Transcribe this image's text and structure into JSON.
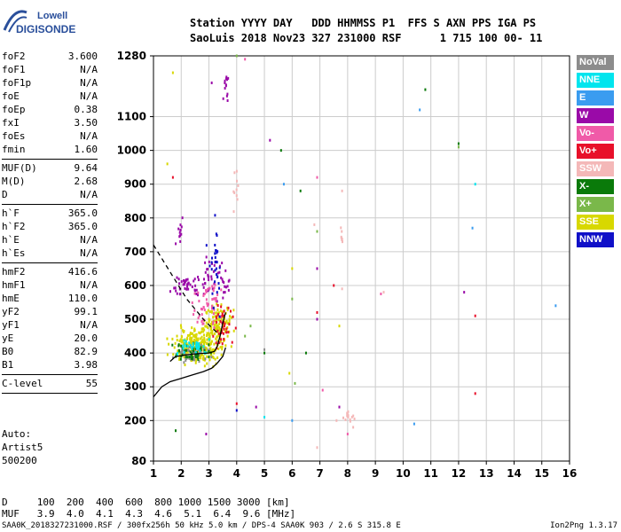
{
  "logo": {
    "line1": "Lowell",
    "line2": "DIGISONDE"
  },
  "header": {
    "line1": "Station YYYY DAY   DDD HHMMSS P1  FFS S AXN PPS IGA PS",
    "line2": "SaoLuis 2018 Nov23 327 231000 RSF      1 715 100 00- 11"
  },
  "params": {
    "g1": [
      [
        "foF2",
        "3.600"
      ],
      [
        "foF1",
        "N/A"
      ],
      [
        "foF1p",
        "N/A"
      ],
      [
        "foE",
        "N/A"
      ],
      [
        "foEp",
        "0.38"
      ],
      [
        "fxI",
        "3.50"
      ],
      [
        "foEs",
        "N/A"
      ],
      [
        "fmin",
        "1.60"
      ]
    ],
    "g2": [
      [
        "MUF(D)",
        "9.64"
      ],
      [
        "M(D)",
        "2.68"
      ],
      [
        "D",
        "N/A"
      ]
    ],
    "g3": [
      [
        "h`F",
        "365.0"
      ],
      [
        "h`F2",
        "365.0"
      ],
      [
        "h`E",
        "N/A"
      ],
      [
        "h`Es",
        "N/A"
      ]
    ],
    "g4": [
      [
        "hmF2",
        "416.6"
      ],
      [
        "hmF1",
        "N/A"
      ],
      [
        "hmE",
        "110.0"
      ],
      [
        "yF2",
        "99.1"
      ],
      [
        "yF1",
        "N/A"
      ],
      [
        "yE",
        "20.0"
      ],
      [
        "B0",
        "82.9"
      ],
      [
        "B1",
        "3.98"
      ]
    ],
    "g5": [
      [
        "C-level",
        "55"
      ]
    ]
  },
  "auto": {
    "l1": "Auto:",
    "l2": "Artist5",
    "l3": "500200"
  },
  "legend": [
    {
      "label": "NoVal",
      "color": "#8c8c8c"
    },
    {
      "label": "NNE",
      "color": "#00e5ee"
    },
    {
      "label": "E",
      "color": "#3a9cf0"
    },
    {
      "label": "W",
      "color": "#9a0aa8"
    },
    {
      "label": "Vo-",
      "color": "#f05aa8"
    },
    {
      "label": "Vo+",
      "color": "#e8102a"
    },
    {
      "label": "SSW",
      "color": "#f4b8b8"
    },
    {
      "label": "X-",
      "color": "#0a7a0a"
    },
    {
      "label": "X+",
      "color": "#7ab84a"
    },
    {
      "label": "SSE",
      "color": "#d8d800"
    },
    {
      "label": "NNW",
      "color": "#1010c8"
    }
  ],
  "bottom": {
    "d_row": "D     100  200  400  600  800 1000 1500 3000 [km]",
    "muf_row": "MUF   3.9  4.0  4.1  4.3  4.6  5.1  6.4  9.6 [MHz]"
  },
  "footer": {
    "left": "SAA0K_2018327231000.RSF / 300fx256h 50 kHz 5.0 km / DPS-4 SAA0K 903 / 2.6 S 315.8 E",
    "right": "Ion2Png 1.3.17"
  },
  "chart_data": {
    "type": "scatter",
    "xlim": [
      1,
      16
    ],
    "ylim": [
      80,
      1280
    ],
    "xticks": [
      1,
      2,
      3,
      4,
      5,
      6,
      7,
      8,
      9,
      10,
      11,
      12,
      13,
      14,
      15,
      16
    ],
    "yticks": [
      80,
      200,
      300,
      400,
      500,
      600,
      700,
      800,
      900,
      1000,
      1100,
      1280
    ],
    "grid": true,
    "trace_profile": {
      "x": [
        1.0,
        1.3,
        1.6,
        2.0,
        2.4,
        2.8,
        3.1,
        3.3,
        3.5,
        3.6
      ],
      "y": [
        270,
        300,
        315,
        325,
        335,
        345,
        355,
        370,
        390,
        416
      ]
    },
    "trace_vh": {
      "x": [
        1.6,
        1.8,
        2.0,
        2.2,
        2.6,
        3.0,
        3.2,
        3.3,
        3.4,
        3.5,
        3.6
      ],
      "y": [
        375,
        390,
        392,
        395,
        398,
        400,
        405,
        420,
        450,
        490,
        520
      ]
    },
    "trace_dashed": {
      "x": [
        1.0,
        1.3,
        1.6,
        1.9,
        2.2,
        2.5,
        2.8,
        3.1,
        3.3
      ],
      "y": [
        720,
        680,
        640,
        600,
        560,
        530,
        500,
        475,
        460
      ]
    },
    "clusters": [
      {
        "cx": 2.6,
        "cy": 420,
        "sx": 0.7,
        "sy": 40,
        "n": 260,
        "color": "#d8d800"
      },
      {
        "cx": 3.3,
        "cy": 480,
        "sx": 0.4,
        "sy": 50,
        "n": 120,
        "color": "#d8d800"
      },
      {
        "cx": 2.4,
        "cy": 400,
        "sx": 0.5,
        "sy": 20,
        "n": 60,
        "color": "#8c8c8c"
      },
      {
        "cx": 2.2,
        "cy": 600,
        "sx": 0.5,
        "sy": 25,
        "n": 40,
        "color": "#9a0aa8"
      },
      {
        "cx": 3.2,
        "cy": 620,
        "sx": 0.4,
        "sy": 60,
        "n": 50,
        "color": "#9a0aa8"
      },
      {
        "cx": 3.0,
        "cy": 540,
        "sx": 0.5,
        "sy": 70,
        "n": 50,
        "color": "#f05aa8"
      },
      {
        "cx": 2.4,
        "cy": 400,
        "sx": 0.6,
        "sy": 25,
        "n": 45,
        "color": "#0a7a0a"
      },
      {
        "cx": 3.5,
        "cy": 480,
        "sx": 0.3,
        "sy": 60,
        "n": 40,
        "color": "#e8102a"
      },
      {
        "cx": 2.5,
        "cy": 420,
        "sx": 0.6,
        "sy": 20,
        "n": 35,
        "color": "#00e5ee"
      },
      {
        "cx": 3.6,
        "cy": 1200,
        "sx": 0.08,
        "sy": 40,
        "n": 14,
        "color": "#9a0aa8"
      },
      {
        "cx": 3.2,
        "cy": 650,
        "sx": 0.25,
        "sy": 90,
        "n": 30,
        "color": "#1010c8"
      },
      {
        "cx": 4.0,
        "cy": 880,
        "sx": 0.1,
        "sy": 40,
        "n": 10,
        "color": "#f4b8b8"
      },
      {
        "cx": 7.8,
        "cy": 750,
        "sx": 0.05,
        "sy": 30,
        "n": 8,
        "color": "#f4b8b8"
      },
      {
        "cx": 8.0,
        "cy": 210,
        "sx": 0.2,
        "sy": 20,
        "n": 14,
        "color": "#f4b8b8"
      },
      {
        "cx": 2.0,
        "cy": 760,
        "sx": 0.15,
        "sy": 40,
        "n": 12,
        "color": "#9a0aa8"
      }
    ],
    "scatter_points": [
      [
        1.7,
        1230,
        "#d8d800"
      ],
      [
        1.5,
        960,
        "#d8d800"
      ],
      [
        1.7,
        920,
        "#e8102a"
      ],
      [
        4.0,
        1280,
        "#7ab84a"
      ],
      [
        4.3,
        1270,
        "#f05aa8"
      ],
      [
        5.2,
        1030,
        "#9a0aa8"
      ],
      [
        5.6,
        1000,
        "#0a7a0a"
      ],
      [
        5.7,
        900,
        "#3a9cf0"
      ],
      [
        6.3,
        880,
        "#0a7a0a"
      ],
      [
        6.9,
        920,
        "#f05aa8"
      ],
      [
        7.8,
        880,
        "#f4b8b8"
      ],
      [
        10.6,
        1120,
        "#3a9cf0"
      ],
      [
        10.8,
        1180,
        "#0a7a0a"
      ],
      [
        12.0,
        1020,
        "#0a7a0a"
      ],
      [
        12.0,
        1010,
        "#7ab84a"
      ],
      [
        12.6,
        900,
        "#00e5ee"
      ],
      [
        12.5,
        770,
        "#3a9cf0"
      ],
      [
        12.2,
        580,
        "#9a0aa8"
      ],
      [
        12.6,
        510,
        "#e8102a"
      ],
      [
        15.5,
        540,
        "#3a9cf0"
      ],
      [
        6.8,
        780,
        "#f4b8b8"
      ],
      [
        6.9,
        760,
        "#7ab84a"
      ],
      [
        6.9,
        650,
        "#9a0aa8"
      ],
      [
        7.5,
        600,
        "#e8102a"
      ],
      [
        7.8,
        590,
        "#f4b8b8"
      ],
      [
        9.3,
        580,
        "#f4b8b8"
      ],
      [
        9.2,
        575,
        "#f05aa8"
      ],
      [
        7.7,
        480,
        "#d8d800"
      ],
      [
        6.0,
        650,
        "#d8d800"
      ],
      [
        6.0,
        560,
        "#7ab84a"
      ],
      [
        6.9,
        500,
        "#9a0aa8"
      ],
      [
        6.9,
        520,
        "#e8102a"
      ],
      [
        6.5,
        400,
        "#0a7a0a"
      ],
      [
        5.0,
        400,
        "#0a7a0a"
      ],
      [
        5.0,
        410,
        "#8c8c8c"
      ],
      [
        4.5,
        480,
        "#7ab84a"
      ],
      [
        4.3,
        450,
        "#7ab84a"
      ],
      [
        5.9,
        340,
        "#d8d800"
      ],
      [
        6.1,
        310,
        "#7ab84a"
      ],
      [
        4.0,
        250,
        "#e8102a"
      ],
      [
        4.0,
        230,
        "#1010c8"
      ],
      [
        4.7,
        240,
        "#9a0aa8"
      ],
      [
        5.0,
        210,
        "#00e5ee"
      ],
      [
        6.0,
        200,
        "#3a9cf0"
      ],
      [
        7.1,
        290,
        "#f05aa8"
      ],
      [
        7.7,
        240,
        "#9a0aa8"
      ],
      [
        7.6,
        200,
        "#f4b8b8"
      ],
      [
        8.2,
        180,
        "#f4b8b8"
      ],
      [
        10.4,
        190,
        "#3a9cf0"
      ],
      [
        12.6,
        280,
        "#e8102a"
      ],
      [
        1.8,
        170,
        "#0a7a0a"
      ],
      [
        2.9,
        160,
        "#9a0aa8"
      ],
      [
        6.9,
        120,
        "#f4b8b8"
      ],
      [
        8.0,
        160,
        "#f05aa8"
      ],
      [
        3.1,
        1200,
        "#9a0aa8"
      ]
    ]
  }
}
